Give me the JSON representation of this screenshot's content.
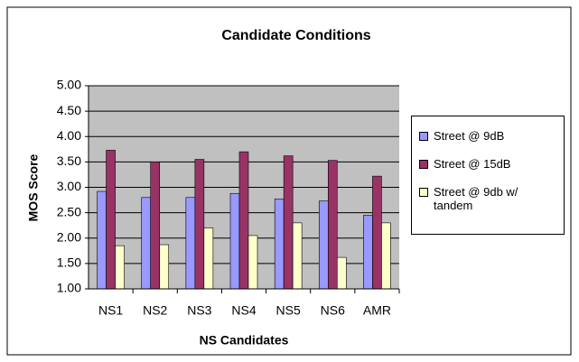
{
  "chart_data": {
    "type": "bar",
    "title": "Candidate Conditions",
    "xlabel": "NS Candidates",
    "ylabel": "MOS Score",
    "categories": [
      "NS1",
      "NS2",
      "NS3",
      "NS4",
      "NS5",
      "NS6",
      "AMR"
    ],
    "series": [
      {
        "name": "Street @ 9dB",
        "color": "#9999ff",
        "values": [
          2.92,
          2.8,
          2.8,
          2.88,
          2.77,
          2.73,
          2.45
        ]
      },
      {
        "name": "Street @ 15dB",
        "color": "#993366",
        "values": [
          3.73,
          3.5,
          3.55,
          3.7,
          3.62,
          3.53,
          3.22
        ]
      },
      {
        "name": "Street @ 9db w/ tandem",
        "color": "#ffffcc",
        "values": [
          1.85,
          1.87,
          2.2,
          2.05,
          2.3,
          1.62,
          2.3
        ]
      }
    ],
    "ylim": [
      1,
      5
    ],
    "yticks": [
      {
        "value": 1,
        "label": "1.00"
      },
      {
        "value": 1.5,
        "label": "1.50"
      },
      {
        "value": 2,
        "label": "2.00"
      },
      {
        "value": 2.5,
        "label": "2.50"
      },
      {
        "value": 3,
        "label": "3.00"
      },
      {
        "value": 3.5,
        "label": "3.50"
      },
      {
        "value": 4,
        "label": "4.00"
      },
      {
        "value": 4.5,
        "label": "4.50"
      },
      {
        "value": 5,
        "label": "5.00"
      }
    ],
    "grid": true,
    "legend": "right"
  }
}
